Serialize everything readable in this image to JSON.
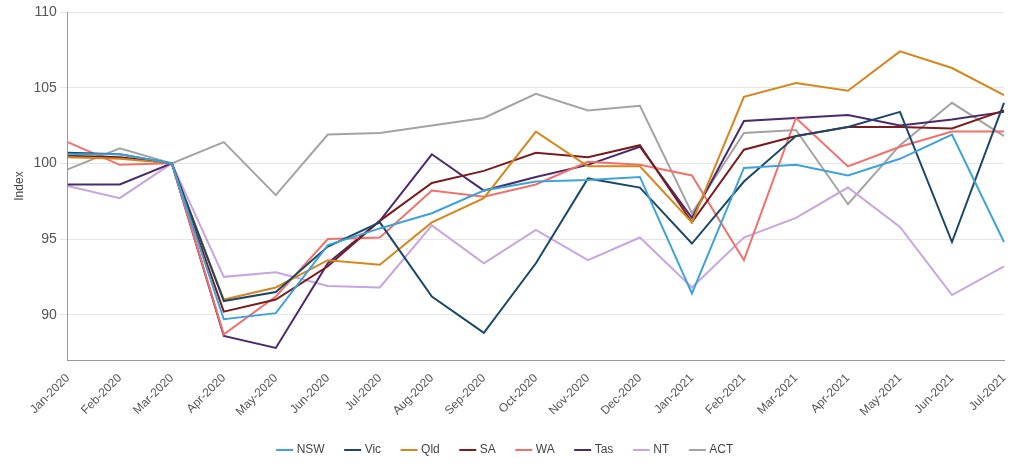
{
  "chart_data": {
    "type": "line",
    "y_label": "Index",
    "categories": [
      "Jan-2020",
      "Feb-2020",
      "Mar-2020",
      "Apr-2020",
      "May-2020",
      "Jun-2020",
      "Jul-2020",
      "Aug-2020",
      "Sep-2020",
      "Oct-2020",
      "Nov-2020",
      "Dec-2020",
      "Jan-2021",
      "Feb-2021",
      "Mar-2021",
      "Apr-2021",
      "May-2021",
      "Jun-2021",
      "Jul-2021"
    ],
    "series": [
      {
        "name": "NSW",
        "color": "#3ea3d8",
        "values": [
          100.6,
          100.6,
          100,
          89.7,
          90.1,
          94.6,
          95.7,
          96.7,
          98.2,
          98.8,
          98.9,
          99.1,
          91.4,
          99.7,
          99.9,
          99.2,
          100.3,
          101.9,
          94.8
        ]
      },
      {
        "name": "Vic",
        "color": "#1b4868",
        "values": [
          100.7,
          100.6,
          100,
          90.9,
          91.5,
          94.5,
          96.1,
          91.2,
          88.8,
          93.4,
          99.0,
          98.4,
          94.7,
          98.8,
          101.8,
          102.4,
          103.4,
          94.8,
          104.0
        ]
      },
      {
        "name": "Qld",
        "color": "#d6861c",
        "values": [
          100.4,
          100.3,
          100,
          91.0,
          91.8,
          93.6,
          93.3,
          96.1,
          97.7,
          102.1,
          99.8,
          99.8,
          96.1,
          104.4,
          105.3,
          104.8,
          107.4,
          106.3,
          104.5
        ]
      },
      {
        "name": "SA",
        "color": "#7a1c1c",
        "values": [
          100.5,
          100.4,
          100,
          90.2,
          91.0,
          93.2,
          96.2,
          98.7,
          99.5,
          100.7,
          100.4,
          101.2,
          96.1,
          100.9,
          101.8,
          102.4,
          102.4,
          102.3,
          103.5
        ]
      },
      {
        "name": "WA",
        "color": "#f0716b",
        "values": [
          101.4,
          99.9,
          100,
          88.7,
          91.2,
          95.0,
          95.1,
          98.2,
          97.8,
          98.6,
          100.1,
          99.9,
          99.2,
          93.6,
          103.0,
          99.8,
          101.1,
          102.1,
          102.1
        ]
      },
      {
        "name": "Tas",
        "color": "#4a2a6c",
        "values": [
          98.6,
          98.6,
          100,
          88.6,
          87.8,
          93.4,
          96.2,
          100.6,
          98.2,
          99.1,
          99.9,
          101.1,
          96.4,
          102.8,
          103.0,
          103.2,
          102.5,
          102.9,
          103.4
        ]
      },
      {
        "name": "NT",
        "color": "#c7a5e0",
        "values": [
          98.5,
          97.7,
          100,
          92.5,
          92.8,
          91.9,
          91.8,
          95.9,
          93.4,
          95.6,
          93.6,
          95.1,
          91.8,
          95.1,
          96.4,
          98.4,
          95.8,
          91.3,
          93.2
        ]
      },
      {
        "name": "ACT",
        "color": "#a3a3a3",
        "values": [
          99.6,
          101.0,
          100,
          101.4,
          97.9,
          101.9,
          102.0,
          102.5,
          103.0,
          104.6,
          103.5,
          103.8,
          96.7,
          102.0,
          102.2,
          97.3,
          101.2,
          104.0,
          101.8
        ]
      }
    ],
    "ylim": [
      87,
      110
    ],
    "yticks": [
      90,
      95,
      100,
      105,
      110
    ],
    "grid": true,
    "legend": "bottom"
  }
}
